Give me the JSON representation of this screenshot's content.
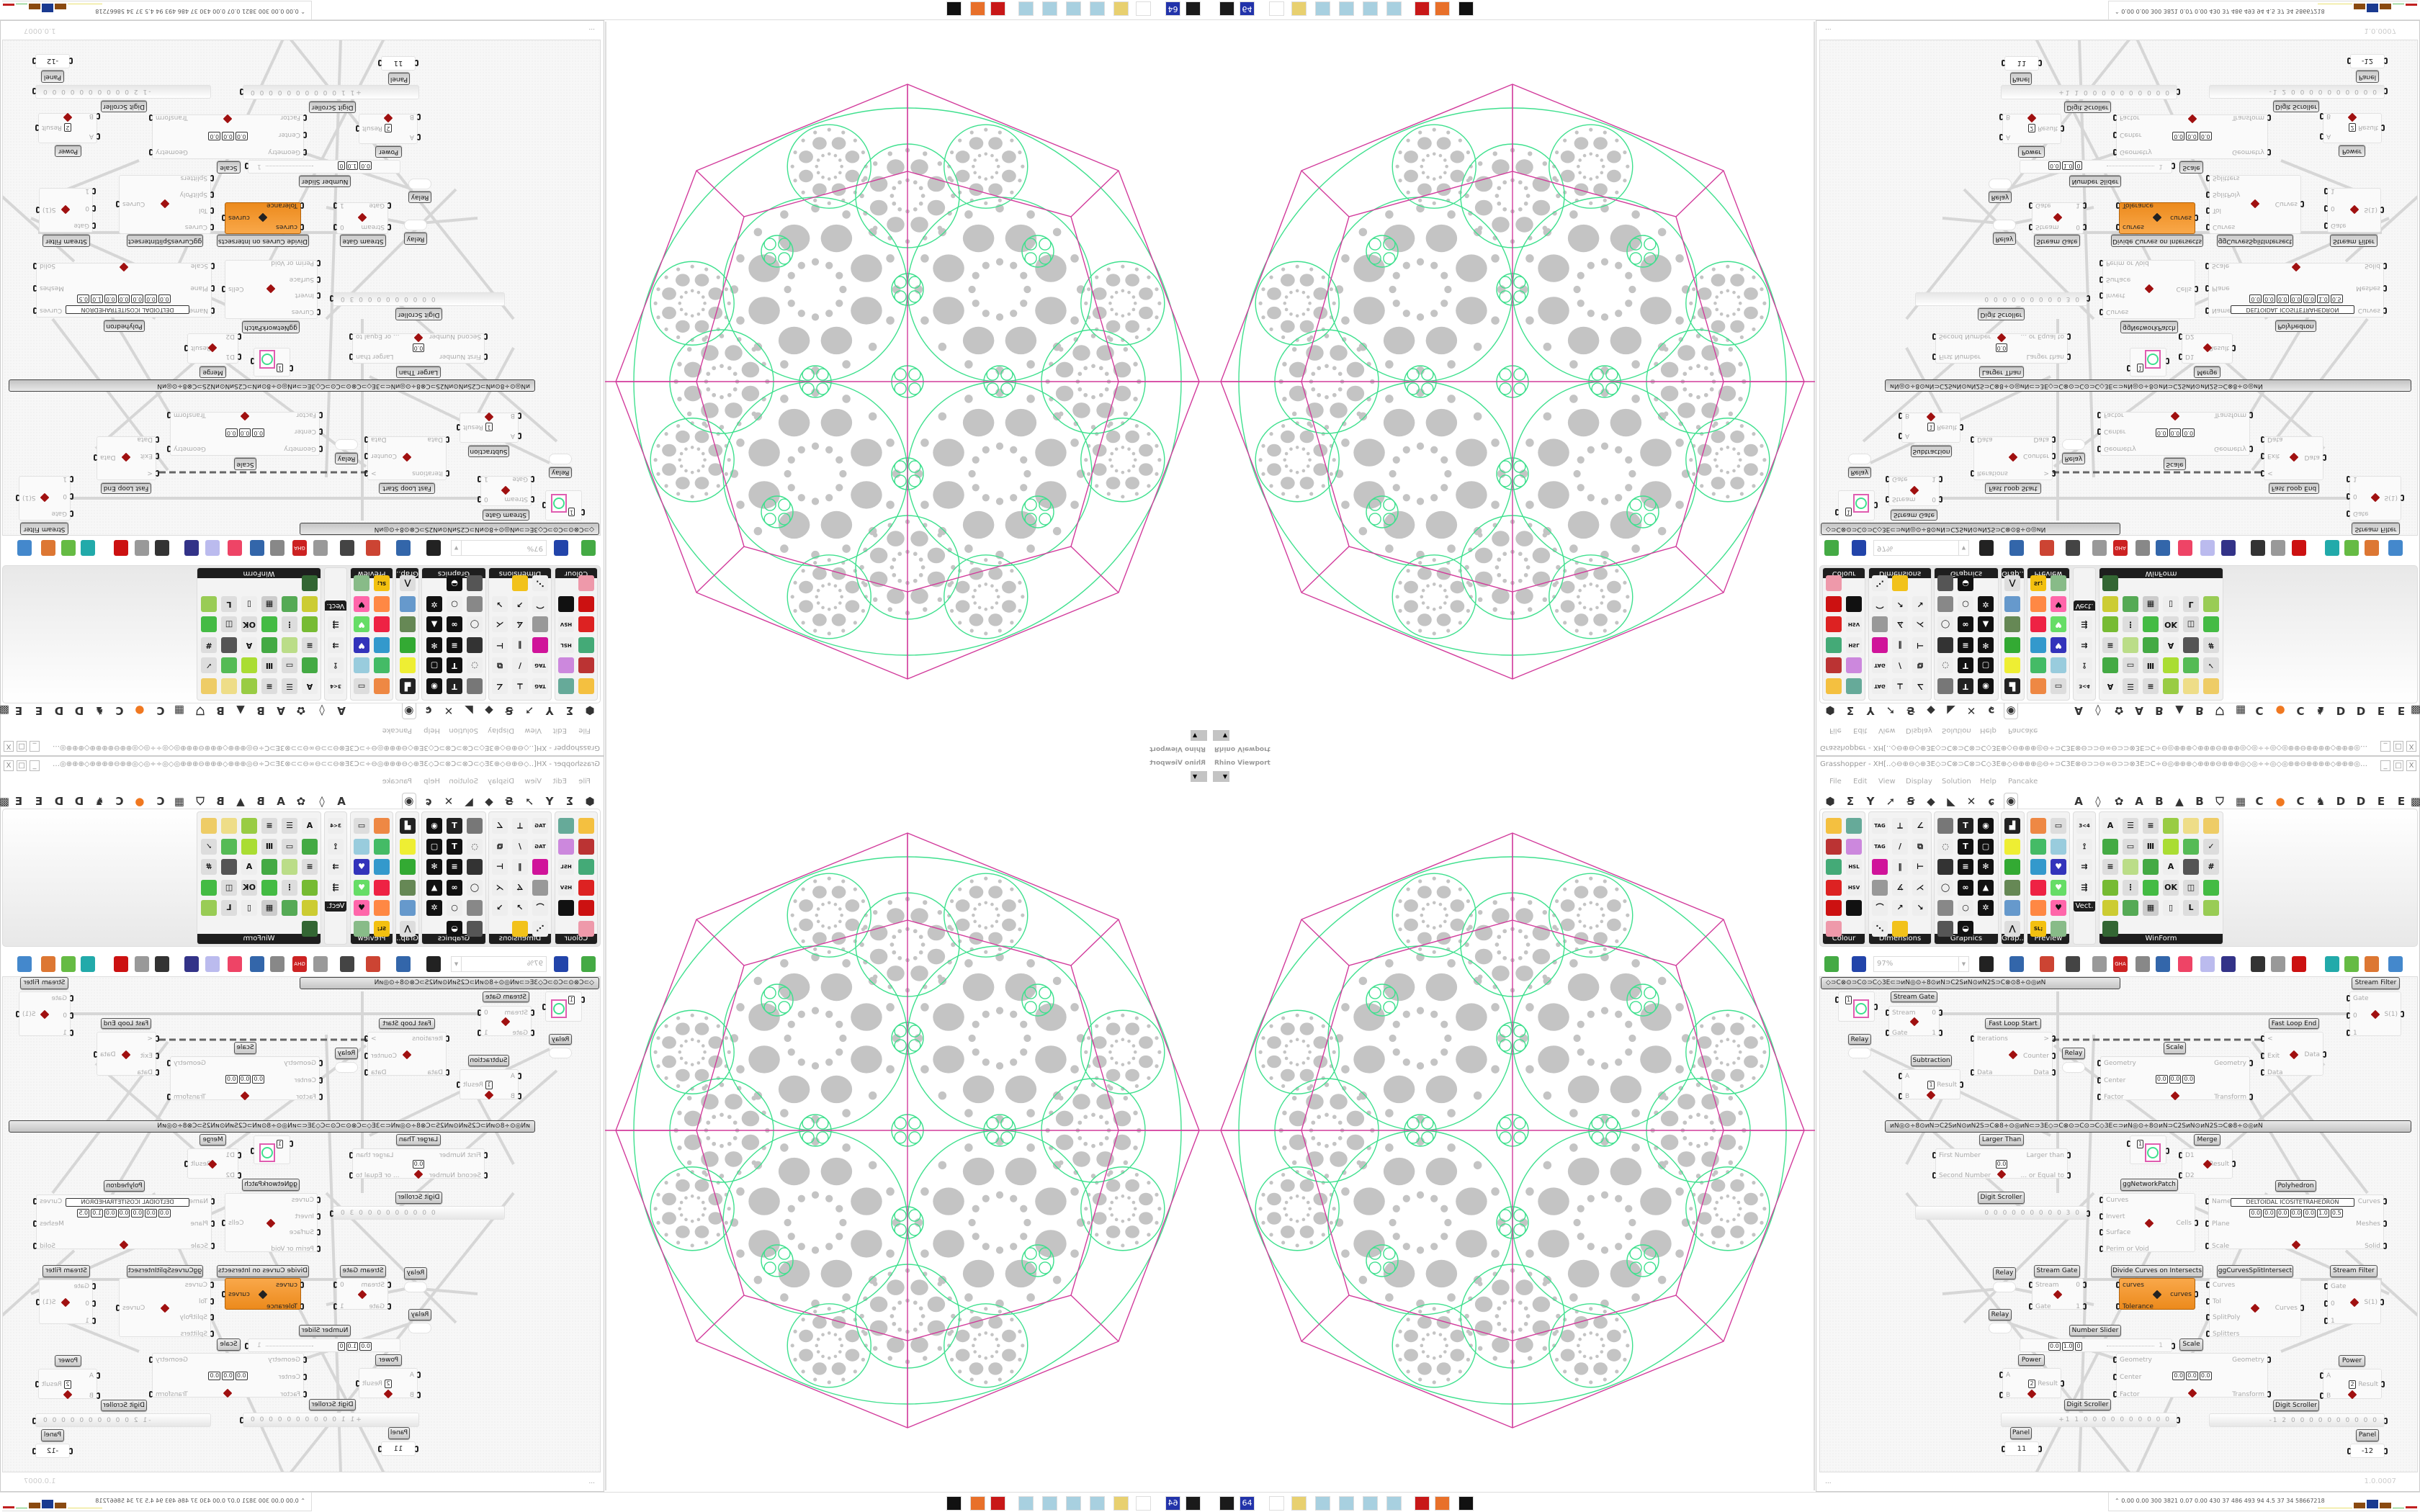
{
  "viewport": {
    "label": "Rhino Viewport",
    "dropdown_icon": "chevron-down-icon"
  },
  "window": {
    "title": "Grasshopper - XH[..◇⊖⊕⊖◇⊕3E◇⊃C⊗⊃C⊗⊃C◇3E⊕◇⊖⊕⊕⊕◎⊖÷⊃C3E⊗⊖⊃⊃⊖∞⊖⊃⊃⊗3E⊃C÷⊖◎⊕⊕⊕◇⊕⊕⊕⊖⊕⊕⊕◎◇◎÷÷◎◇◎⊕⊕⊖⊕⊕⊕⊕◇⊕⊕⊕◎⊖÷⊃C3E⊗⊖⊃⊃⊖∞⊖⊃...",
    "controls": [
      "_",
      "□",
      "X"
    ]
  },
  "menu": [
    "File",
    "Edit",
    "View",
    "Display",
    "Solution",
    "Help",
    "Pancake"
  ],
  "category_tabs": [
    {
      "name": "params-hexagon-icon",
      "g": "⬢"
    },
    {
      "name": "maths-sigma-icon",
      "g": "Σ"
    },
    {
      "name": "sets-icon",
      "g": "Y"
    },
    {
      "name": "vector-icon",
      "g": "➚"
    },
    {
      "name": "curve-icon",
      "g": "Ꞩ"
    },
    {
      "name": "surface-icon",
      "g": "◆"
    },
    {
      "name": "mesh-icon",
      "g": "◣"
    },
    {
      "name": "intersect-icon",
      "g": "✕"
    },
    {
      "name": "transform-icon",
      "g": "ɕ"
    },
    {
      "name": "display-eye-icon",
      "g": "◉",
      "active": true
    },
    {
      "name": "tab-a-icon",
      "g": "A"
    },
    {
      "name": "leaf-icon",
      "g": "◊"
    },
    {
      "name": "puzzle-icon",
      "g": "✿"
    },
    {
      "name": "tab-a2-icon",
      "g": "A"
    },
    {
      "name": "tab-b-icon",
      "g": "B"
    },
    {
      "name": "mountain-icon",
      "g": "▲"
    },
    {
      "name": "tab-b2-icon",
      "g": "B"
    },
    {
      "name": "shield-icon",
      "g": "⛉"
    },
    {
      "name": "grid-icon",
      "g": "▦"
    },
    {
      "name": "tab-c-icon",
      "g": "C"
    },
    {
      "name": "orange-circle-icon",
      "g": "●",
      "c": "#f07820"
    },
    {
      "name": "tab-c2-icon",
      "g": "C"
    },
    {
      "name": "rooster-icon",
      "g": "♞"
    },
    {
      "name": "tab-d-icon",
      "g": "D"
    },
    {
      "name": "tab-d2-icon",
      "g": "D"
    },
    {
      "name": "tab-e-icon",
      "g": "E"
    },
    {
      "name": "tab-e2-icon",
      "g": "E"
    },
    {
      "name": "grid2-icon",
      "g": "▩"
    }
  ],
  "ribbon": [
    {
      "label": "Colour",
      "cols": 2,
      "icons": [
        {
          "n": "colour-wheel",
          "c": "#f4c040"
        },
        {
          "n": "gradient",
          "c": "#6a9"
        },
        {
          "n": "colour-box",
          "c": "#b33"
        },
        {
          "n": "colour-triangle",
          "c": "#c8d"
        },
        {
          "n": "colour-cube",
          "c": "#4a7"
        },
        {
          "n": "hsl",
          "c": "#eee",
          "t": "HSL"
        },
        {
          "n": "sphere-red",
          "c": "#d22"
        },
        {
          "n": "hsv",
          "c": "#eee",
          "t": "HSV"
        },
        {
          "n": "sphere-red-2",
          "c": "#c11"
        },
        {
          "n": "prism",
          "c": "#111"
        },
        {
          "n": "gradient-square",
          "c": "#e9a"
        }
      ]
    },
    {
      "label": "Dimensions",
      "cols": 3,
      "icons": [
        {
          "n": "tag-delete",
          "c": "#eee",
          "t": "TAG"
        },
        {
          "n": "linear-dimension",
          "c": "#eee",
          "t": "⟂"
        },
        {
          "n": "angular-dimension",
          "c": "#eee",
          "t": "∠"
        },
        {
          "n": "tag",
          "c": "#eee",
          "t": "TAG"
        },
        {
          "n": "line-dimension",
          "c": "#eee",
          "t": "/"
        },
        {
          "n": "box-dimension",
          "c": "#eee",
          "t": "⧉"
        },
        {
          "n": "magenta-square",
          "c": "#d0149a"
        },
        {
          "n": "marks",
          "c": "#eee",
          "t": "‖"
        },
        {
          "n": "bracket-dimension",
          "c": "#eee",
          "t": "⊢"
        },
        {
          "n": "hatch-grid",
          "c": "#999"
        },
        {
          "n": "angle",
          "c": "#eee",
          "t": "∡"
        },
        {
          "n": "angle-red",
          "c": "#eee",
          "t": "⋌"
        },
        {
          "n": "arc-dimension",
          "c": "#eee",
          "t": "⌒"
        },
        {
          "n": "arc-red",
          "c": "#eee",
          "t": "↗"
        },
        {
          "n": "leader",
          "c": "#eee",
          "t": "↘"
        },
        {
          "n": "dotted-line",
          "c": "#eee",
          "t": "⋱"
        },
        {
          "n": "triangle-yellow",
          "c": "#f2c21a"
        }
      ]
    },
    {
      "label": "Graphics",
      "cols": 3,
      "icons": [
        {
          "n": "circle-gray",
          "c": "#777"
        },
        {
          "n": "text-circle",
          "c": "#222",
          "t": "T"
        },
        {
          "n": "eye-circle",
          "c": "#111",
          "t": "◉"
        },
        {
          "n": "dotted-circle",
          "c": "#eee",
          "t": "◌"
        },
        {
          "n": "text-black",
          "c": "#111",
          "t": "T"
        },
        {
          "n": "rounded-square",
          "c": "#111",
          "t": "▢"
        },
        {
          "n": "blur-dot",
          "c": "#333"
        },
        {
          "n": "list-circle",
          "c": "#111",
          "t": "≡"
        },
        {
          "n": "gear-circle",
          "c": "#111",
          "t": "✻"
        },
        {
          "n": "ring",
          "c": "#eee",
          "t": "◯"
        },
        {
          "n": "link",
          "c": "#111",
          "t": "∞"
        },
        {
          "n": "floppy-mountain",
          "c": "#111",
          "t": "▲"
        },
        {
          "n": "sphere-gray",
          "c": "#888"
        },
        {
          "n": "dotted-ring",
          "c": "#eee",
          "t": "○"
        },
        {
          "n": "floppy-star",
          "c": "#111",
          "t": "✲"
        },
        {
          "n": "sphere-dark",
          "c": "#555"
        },
        {
          "n": "mountain-circle",
          "c": "#111",
          "t": "◒"
        }
      ]
    },
    {
      "label": "Grap..",
      "cols": 1,
      "icons": [
        {
          "n": "bar-chart",
          "c": "#222",
          "t": "▟"
        },
        {
          "n": "gradient-legend",
          "c": "#ee3"
        },
        {
          "n": "pie-ring",
          "c": "#3a3"
        },
        {
          "n": "line-chart",
          "c": "#685"
        },
        {
          "n": "screens",
          "c": "#69c"
        },
        {
          "n": "line-chart-2",
          "c": "#ddd",
          "t": "⋀"
        }
      ]
    },
    {
      "label": "Preview",
      "cols": 2,
      "icons": [
        {
          "n": "egg-material",
          "c": "#e84"
        },
        {
          "n": "camera",
          "c": "#ddd",
          "t": "▭"
        },
        {
          "n": "sphere-image",
          "c": "#4b6"
        },
        {
          "n": "trees-image",
          "c": "#9cd"
        },
        {
          "n": "blobs-blue",
          "c": "#39c"
        },
        {
          "n": "heart-blue",
          "c": "#33b",
          "t": "♥"
        },
        {
          "n": "blobs-red",
          "c": "#e24"
        },
        {
          "n": "heart-green",
          "c": "#6d6",
          "t": "♥"
        },
        {
          "n": "gradient-box",
          "c": "#f84"
        },
        {
          "n": "hearts",
          "c": "#f6a",
          "t": "♥"
        },
        {
          "n": "sl-text",
          "c": "#f3c010",
          "t": "SL;"
        },
        {
          "n": "tree-image",
          "c": "#8b8"
        }
      ]
    },
    {
      "label": "Vect.",
      "cols": 1,
      "icons": [
        {
          "n": "number-sort",
          "c": "#eee",
          "t": "3<4"
        },
        {
          "n": "path-arrows",
          "c": "#eee",
          "t": "⟟"
        },
        {
          "n": "arrows-red",
          "c": "#eee",
          "t": "⇉"
        },
        {
          "n": "arrows-green",
          "c": "#eee",
          "t": "⇶"
        }
      ]
    },
    {
      "label": "WinForm",
      "cols": 6,
      "icons": [
        {
          "n": "text-a",
          "c": "#eee",
          "t": "A"
        },
        {
          "n": "list-form",
          "c": "#ddd",
          "t": "☰"
        },
        {
          "n": "text-lines",
          "c": "#ddd",
          "t": "≡"
        },
        {
          "n": "grid-green",
          "c": "#9c4"
        },
        {
          "n": "pie-window",
          "c": "#ed8"
        },
        {
          "n": "window-yellow",
          "c": "#ec6"
        },
        {
          "n": "hatch-green",
          "c": "#4a4"
        },
        {
          "n": "slider-bar",
          "c": "#ddd",
          "t": "▭"
        },
        {
          "n": "slider-thumbs",
          "c": "#ddd",
          "t": "Ⅲ"
        },
        {
          "n": "pie-chart",
          "c": "#ad3"
        },
        {
          "n": "person-pie",
          "c": "#5b5"
        },
        {
          "n": "checkbox",
          "c": "#ddd",
          "t": "✓"
        },
        {
          "n": "text-lines-2",
          "c": "#ddd",
          "t": "≡"
        },
        {
          "n": "trees-form",
          "c": "#bd8"
        },
        {
          "n": "split-arrow",
          "c": "#4a4"
        },
        {
          "n": "text-a-plus",
          "c": "#eee",
          "t": "A"
        },
        {
          "n": "window-bar",
          "c": "#555"
        },
        {
          "n": "numeric-up-down",
          "c": "#ddd",
          "t": "#"
        },
        {
          "n": "package",
          "c": "#7b3"
        },
        {
          "n": "list-numbered",
          "c": "#ddd",
          "t": "⋮"
        },
        {
          "n": "window-green",
          "c": "#4b4"
        },
        {
          "n": "ok-button",
          "c": "#ddd",
          "t": "OK"
        },
        {
          "n": "toggle",
          "c": "#ddd",
          "t": "◫"
        },
        {
          "n": "progress-green",
          "c": "#4b4"
        },
        {
          "n": "bars-chart",
          "c": "#cc3"
        },
        {
          "n": "arrow-window",
          "c": "#5a5"
        },
        {
          "n": "calendar",
          "c": "#ccc",
          "t": "▦"
        },
        {
          "n": "vertical-slider",
          "c": "#eee",
          "t": "▯"
        },
        {
          "n": "label",
          "c": "#ddd",
          "t": "L"
        },
        {
          "n": "area-chart",
          "c": "#9c5"
        },
        {
          "n": "grid-down",
          "c": "#363"
        }
      ]
    }
  ],
  "toolbar": {
    "zoom_value": "97%",
    "icons": [
      {
        "n": "new-file",
        "c": "#4a4"
      },
      {
        "n": "save",
        "c": "#2244aa"
      },
      {
        "n": "zoom-extents",
        "c": "#222"
      },
      {
        "n": "preview-eye",
        "c": "#36a"
      },
      {
        "n": "sketch-pen",
        "c": "#c43"
      },
      {
        "n": "cylinder",
        "c": "#444"
      },
      {
        "n": "wire-display",
        "c": "#999"
      },
      {
        "n": "gha",
        "c": "#c22"
      },
      {
        "n": "window-red",
        "c": "#888"
      },
      {
        "n": "search-s",
        "c": "#36a"
      },
      {
        "n": "box-question",
        "c": "#e46"
      },
      {
        "n": "bulb",
        "c": "#bbe"
      },
      {
        "n": "wires-cross",
        "c": "#338"
      },
      {
        "n": "bomb",
        "c": "#333"
      },
      {
        "n": "cylinder-wire",
        "c": "#999"
      },
      {
        "n": "red-cylinder",
        "c": "#c11"
      },
      {
        "n": "teal-shape",
        "c": "#2aa"
      },
      {
        "n": "green-shape",
        "c": "#6b4"
      },
      {
        "n": "half-sphere",
        "c": "#d73"
      },
      {
        "n": "blue-sphere",
        "c": "#48c"
      }
    ]
  },
  "canvas": {
    "groups": [
      "◇⊃C⊗⊙⊃C⊙⊃C◇3E⊂⊃ᴎN◎⊙÷8⊙ᴎN⊃C2SᴎN⊙ᴎN2S⊃C⊗⊙8÷⊙◎ᴎN",
      "ᴎN◎⊙÷8⊙ᴎN⊃C2SᴎN⊙ᴎN2S⊃C⊗8÷⊙◎ᴎN⊂⊃3E◇⊃C⊗⊙⊃C⊙⊃C◇3E⊂⊃ᴎN◎⊙÷8⊙ᴎN⊃C2SᴎN⊙ᴎN2S⊃C⊗8÷⊙◎ᴎN"
    ],
    "nodes": [
      {
        "kind": "swatch",
        "value": "1"
      },
      {
        "title": "Stream Gate",
        "in": [
          "Stream",
          "Gate"
        ],
        "out": [
          "0",
          "1"
        ],
        "icon": "stream-gate-icon"
      },
      {
        "title": "Relay",
        "kind": "relay"
      },
      {
        "title": "Fast Loop Start",
        "in": [
          "Iterations",
          "Data"
        ],
        "out": [
          ">",
          "Counter",
          "Data"
        ],
        "icon": "loop-start-icon"
      },
      {
        "title": "Relay",
        "kind": "relay"
      },
      {
        "title": "Subtraction",
        "in": [
          "A",
          "B"
        ],
        "out": [
          "Result"
        ],
        "fields": [
          "1"
        ],
        "icon": "minus-icon"
      },
      {
        "title": "Scale",
        "in": [
          "Geometry",
          "Center",
          "Factor"
        ],
        "out": [
          "Geometry",
          "Transform"
        ],
        "fields": [
          "0.0",
          "0.0",
          "0.0"
        ],
        "icon": "scale-icon"
      },
      {
        "title": "Fast Loop End",
        "in": [
          "<",
          "Exit",
          "Data"
        ],
        "out": [
          "Data"
        ],
        "icon": "loop-end-icon"
      },
      {
        "title": "Stream Filter",
        "in": [
          "Gate",
          "0",
          "1"
        ],
        "out": [
          "S(1)"
        ],
        "icon": "stream-filter-icon"
      },
      {
        "title": "Larger Than",
        "in": [
          "First Number",
          "Second Number"
        ],
        "out": [
          "Larger than",
          "... or Equal to"
        ],
        "fields": [
          "0.0"
        ],
        "icon": "larger-than-icon"
      },
      {
        "kind": "swatch",
        "value": "1"
      },
      {
        "title": "Merge",
        "in": [
          "D1",
          "D2"
        ],
        "out": [
          "Result"
        ],
        "icon": "merge-icon"
      },
      {
        "title": "ggNetworkPatch",
        "in": [
          "Curves",
          "Invert",
          "Surface",
          "Perim or Void"
        ],
        "out": [
          "Cells"
        ],
        "icon": "network-patch-icon"
      },
      {
        "title": "Polyhedron",
        "in": [
          "Name",
          "Plane",
          "Scale"
        ],
        "out": [
          "Curves",
          "Meshes",
          "Solid"
        ],
        "fields": [
          "DELTOIDAL ICOSITETRAHEDRON",
          "0.0",
          "0.0",
          "0.0",
          "0.0",
          "0.0",
          "1.0",
          "0.5"
        ],
        "icon": "polyhedron-icon"
      },
      {
        "title": "Digit Scroller",
        "kind": "scroller",
        "value": "0 0 0 0 0 0 0 0 0 3 0"
      },
      {
        "title": "Relay",
        "kind": "relay"
      },
      {
        "title": "Stream Gate",
        "in": [
          "Stream",
          "Gate"
        ],
        "out": [
          "0",
          "1"
        ],
        "icon": "stream-gate-icon"
      },
      {
        "title": "Divide Curves on Intersects",
        "kind": "orange",
        "in": [
          "curves",
          "Tolerance"
        ],
        "out": [
          "curves"
        ],
        "icon": "divide-curves-icon"
      },
      {
        "title": "ggCurvesSplitIntersect",
        "in": [
          "Curves",
          "Tol",
          "SplitPoly",
          "Splitters"
        ],
        "out": [
          "Curves"
        ],
        "icon": "split-intersect-icon"
      },
      {
        "title": "Stream Filter",
        "in": [
          "Gate",
          "0",
          "1"
        ],
        "out": [
          "S(1)"
        ],
        "icon": "stream-filter-icon"
      },
      {
        "title": "Relay",
        "kind": "relay"
      },
      {
        "title": "Number Slider",
        "kind": "numslider",
        "fields": [
          "0.0",
          "1.0",
          "0"
        ],
        "value": "1"
      },
      {
        "title": "Scale",
        "in": [
          "Geometry",
          "Center",
          "Factor"
        ],
        "out": [
          "Geometry",
          "Transform"
        ],
        "fields": [
          "0.0",
          "0.0",
          "0.0"
        ],
        "icon": "scale-icon"
      },
      {
        "title": "Power",
        "in": [
          "A",
          "B"
        ],
        "out": [
          "Result"
        ],
        "fields": [
          "2"
        ],
        "icon": "power-icon"
      },
      {
        "title": "Power",
        "in": [
          "A",
          "B"
        ],
        "out": [
          "Result"
        ],
        "fields": [
          "2"
        ],
        "icon": "power-icon"
      },
      {
        "title": "Digit Scroller",
        "kind": "scroller",
        "value": "+1 1 0 0 0 0 0 0 0 0 0 0"
      },
      {
        "title": "Digit Scroller",
        "kind": "scroller",
        "value": "-1 2 0 0 0 0 0 0 0 0 0 0"
      },
      {
        "title": "Panel",
        "kind": "panel",
        "value": "11"
      },
      {
        "title": "Panel",
        "kind": "panel",
        "value": "-12"
      }
    ]
  },
  "status": {
    "left": "...",
    "version": "1.0.0007"
  },
  "taskbar": {
    "icons": [
      {
        "n": "terminal",
        "c": "#1a1a1a"
      },
      {
        "n": "floppy-64",
        "c": "#2233aa",
        "t": "64"
      },
      {
        "n": "blank",
        "c": "#fff"
      },
      {
        "n": "folder",
        "c": "#e8d070"
      },
      {
        "n": "notepad-1",
        "c": "#a8d0e0"
      },
      {
        "n": "notepad-2",
        "c": "#a8d0e0"
      },
      {
        "n": "notepad-3",
        "c": "#a8d0e0"
      },
      {
        "n": "notepad-4",
        "c": "#a8d0e0"
      },
      {
        "n": "red-app",
        "c": "#c81818"
      },
      {
        "n": "firefox",
        "c": "#e8702a"
      },
      {
        "n": "inkscape",
        "c": "#111"
      }
    ],
    "stats": "0.00 0.00 300 3821 0.07 0.00 430 37 486 493 94 4.5 37 34 58667218",
    "meter_colors": [
      "#e8e070",
      "#8a4a10",
      "#1a3a90",
      "#8a4a10",
      "#60c060",
      "#c02020"
    ]
  },
  "colors": {
    "edge_pink": "#d23c9c",
    "curve_green": "#3fe08e",
    "hole_gray": "#c4c4c4",
    "component_orange": "#f0901e"
  }
}
